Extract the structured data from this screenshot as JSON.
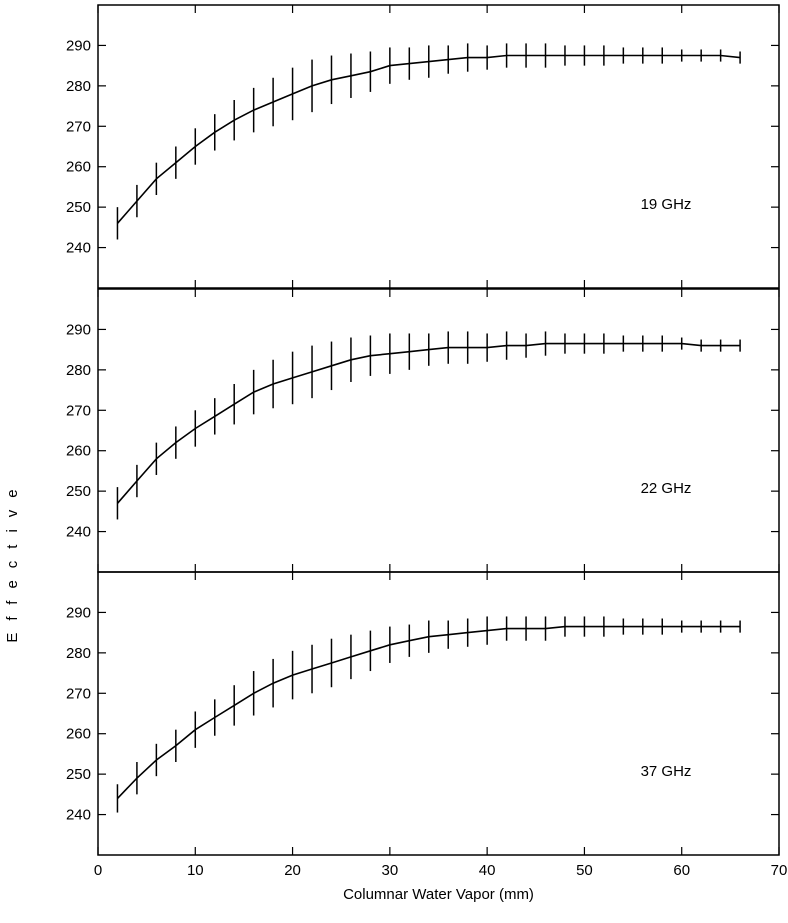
{
  "chart_data": {
    "type": "line",
    "layout": "stacked-panels-shared-x",
    "xlabel": "Columnar Water Vapor (mm)",
    "ylabel": "Effective",
    "xlim": [
      0,
      70
    ],
    "x_ticks": [
      0,
      10,
      20,
      30,
      40,
      50,
      60,
      70
    ],
    "ylim": [
      230,
      300
    ],
    "y_ticks": [
      240,
      250,
      260,
      270,
      280,
      290
    ],
    "error_bars": true,
    "grid": false,
    "legend": "none",
    "line_color": "#000000",
    "x": [
      2,
      4,
      6,
      8,
      10,
      12,
      14,
      16,
      18,
      20,
      22,
      24,
      26,
      28,
      30,
      32,
      34,
      36,
      38,
      40,
      42,
      44,
      46,
      48,
      50,
      52,
      54,
      56,
      58,
      60,
      62,
      64,
      66
    ],
    "panels": [
      {
        "label": "19 GHz",
        "values": [
          246,
          251.5,
          257,
          261,
          265,
          268.5,
          271.5,
          274,
          276,
          278,
          280,
          281.5,
          282.5,
          283.5,
          285,
          285.5,
          286,
          286.5,
          287,
          287,
          287.5,
          287.5,
          287.5,
          287.5,
          287.5,
          287.5,
          287.5,
          287.5,
          287.5,
          287.5,
          287.5,
          287.5,
          287
        ],
        "errors": [
          4,
          4,
          4,
          4,
          4.5,
          4.5,
          5,
          5.5,
          6,
          6.5,
          6.5,
          6,
          5.5,
          5,
          4.5,
          4,
          4,
          3.5,
          3.5,
          3,
          3,
          3,
          3,
          2.5,
          2.5,
          2.5,
          2,
          2,
          2,
          1.5,
          1.5,
          1.5,
          1.5
        ]
      },
      {
        "label": "22 GHz",
        "values": [
          247,
          252.5,
          258,
          262,
          265.5,
          268.5,
          271.5,
          274.5,
          276.5,
          278,
          279.5,
          281,
          282.5,
          283.5,
          284,
          284.5,
          285,
          285.5,
          285.5,
          285.5,
          286,
          286,
          286.5,
          286.5,
          286.5,
          286.5,
          286.5,
          286.5,
          286.5,
          286.5,
          286,
          286,
          286
        ],
        "errors": [
          4,
          4,
          4,
          4,
          4.5,
          4.5,
          5,
          5.5,
          6,
          6.5,
          6.5,
          6,
          5.5,
          5,
          5,
          4.5,
          4,
          4,
          4,
          3.5,
          3.5,
          3,
          3,
          2.5,
          2.5,
          2.5,
          2,
          2,
          2,
          1.5,
          1.5,
          1.5,
          1.5
        ]
      },
      {
        "label": "37 GHz",
        "values": [
          244,
          249,
          253.5,
          257,
          261,
          264,
          267,
          270,
          272.5,
          274.5,
          276,
          277.5,
          279,
          280.5,
          282,
          283,
          284,
          284.5,
          285,
          285.5,
          286,
          286,
          286,
          286.5,
          286.5,
          286.5,
          286.5,
          286.5,
          286.5,
          286.5,
          286.5,
          286.5,
          286.5
        ],
        "errors": [
          3.5,
          4,
          4,
          4,
          4.5,
          4.5,
          5,
          5.5,
          6,
          6,
          6,
          6,
          5.5,
          5,
          4.5,
          4,
          4,
          3.5,
          3.5,
          3.5,
          3,
          3,
          3,
          2.5,
          2.5,
          2.5,
          2,
          2,
          2,
          1.5,
          1.5,
          1.5,
          1.5
        ]
      }
    ]
  }
}
